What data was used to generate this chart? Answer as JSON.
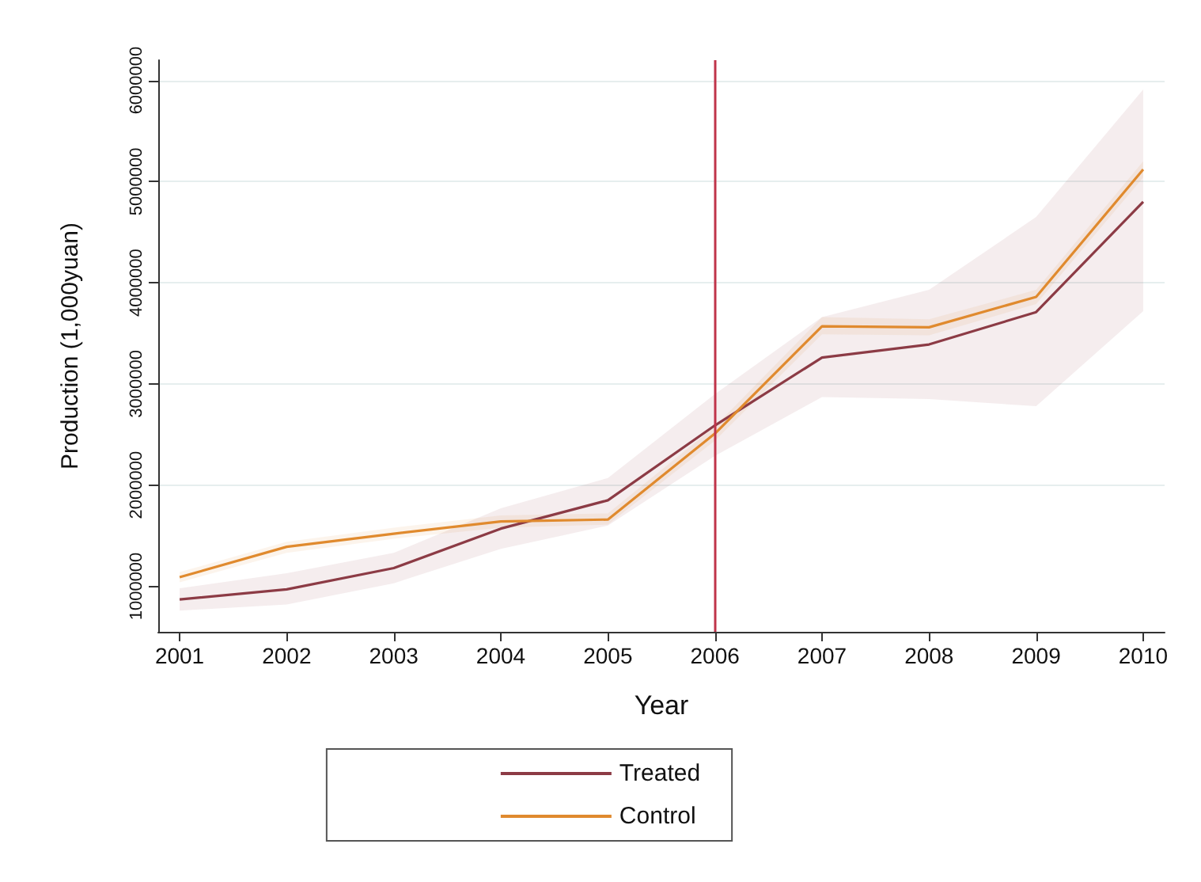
{
  "chart_data": {
    "type": "line",
    "xlabel": "Year",
    "ylabel": "Production (1,000yuan)",
    "x": [
      2001,
      2002,
      2003,
      2004,
      2005,
      2006,
      2007,
      2008,
      2009,
      2010
    ],
    "xlim": [
      2000.8,
      2010.2
    ],
    "xticks": [
      2001,
      2002,
      2003,
      2004,
      2005,
      2006,
      2007,
      2008,
      2009,
      2010
    ],
    "ylim": [
      550000,
      6200000
    ],
    "yticks": [
      1000000,
      2000000,
      3000000,
      4000000,
      5000000,
      6000000
    ],
    "series": [
      {
        "name": "Treated",
        "color": "#8c3b45",
        "values": [
          870000,
          970000,
          1180000,
          1570000,
          1850000,
          2590000,
          3260000,
          3390000,
          3710000,
          4800000
        ],
        "lower": [
          760000,
          820000,
          1030000,
          1370000,
          1600000,
          2290000,
          2870000,
          2850000,
          2780000,
          3720000
        ],
        "upper": [
          980000,
          1130000,
          1330000,
          1770000,
          2070000,
          2900000,
          3660000,
          3930000,
          4650000,
          5910000
        ]
      },
      {
        "name": "Control",
        "color": "#e08a2e",
        "values": [
          1090000,
          1390000,
          1520000,
          1640000,
          1660000,
          2510000,
          3570000,
          3560000,
          3860000,
          5120000
        ],
        "lower": [
          1040000,
          1330000,
          1470000,
          1580000,
          1610000,
          2440000,
          3490000,
          3480000,
          3790000,
          5040000
        ],
        "upper": [
          1140000,
          1440000,
          1580000,
          1700000,
          1720000,
          2580000,
          3660000,
          3640000,
          3930000,
          5200000
        ]
      }
    ],
    "ref_lines": [
      {
        "axis": "x",
        "value": 2006,
        "color": "#c0344a"
      }
    ],
    "grid": "y",
    "legend": "bottom",
    "marker": "none",
    "line_style": "solid"
  }
}
